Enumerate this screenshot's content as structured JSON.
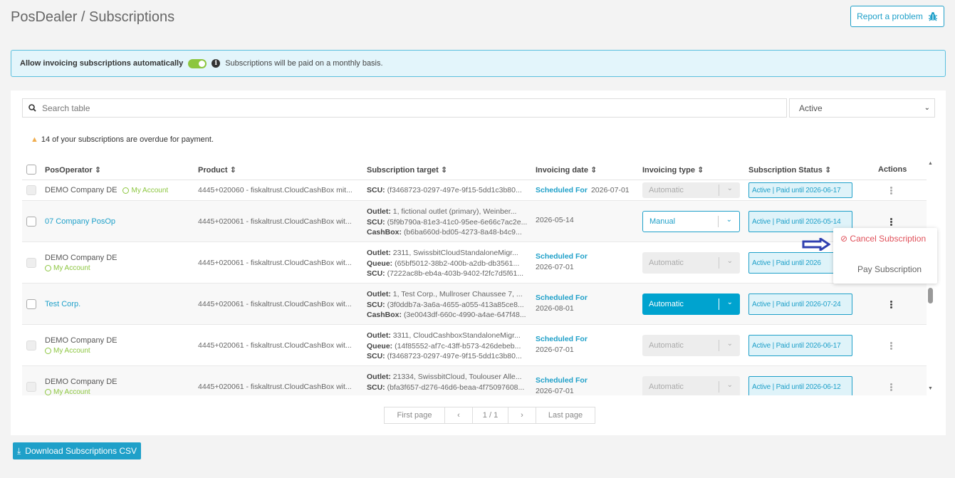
{
  "header": {
    "title": "PosDealer / Subscriptions",
    "report_label": "Report a problem",
    "report_icon": "bug-icon"
  },
  "banner": {
    "label": "Allow invoicing subscriptions automatically",
    "toggle_on": true,
    "info": "Subscriptions will be paid on a monthly basis."
  },
  "search": {
    "placeholder": "Search table"
  },
  "filter": {
    "selected": "Active"
  },
  "warning": "14 of your subscriptions are overdue for payment.",
  "columns": [
    "PosOperator",
    "Product",
    "Subscription target",
    "Invoicing date",
    "Invoicing type",
    "Subscription Status",
    "Actions"
  ],
  "rows": [
    {
      "operator": "DEMO Company DE",
      "account": "My Account",
      "product": "4445+020060 - fiskaltrust.CloudCashBox mit...",
      "target": [
        {
          "k": "",
          "v": ""
        },
        {
          "k": "",
          "v": ""
        },
        {
          "k": "SCU:",
          "v": "(f3468723-0297-497e-9f15-5dd1c3b80..."
        }
      ],
      "scheduled": "Scheduled For",
      "date": "2026-07-01",
      "type": "Automatic",
      "type_state": "disabled",
      "status": "Active | Paid until 2026-06-17"
    },
    {
      "operator": "07 Company PosOp",
      "account": "",
      "product": "4445+020061 - fiskaltrust.CloudCashBox wit...",
      "target": [
        {
          "k": "Outlet:",
          "v": "1, fictional outlet (primary), Weinber..."
        },
        {
          "k": "SCU:",
          "v": "(5f9b790a-81e3-41c0-95ee-6e66c7ac2e..."
        },
        {
          "k": "CashBox:",
          "v": "(b6ba660d-bd05-4273-8a48-b4c9..."
        }
      ],
      "scheduled": "",
      "date": "2026-05-14",
      "type": "Manual",
      "type_state": "manual",
      "status": "Active | Paid until 2026-05-14"
    },
    {
      "operator": "DEMO Company DE",
      "account": "My Account",
      "product": "4445+020061 - fiskaltrust.CloudCashBox wit...",
      "target": [
        {
          "k": "Outlet:",
          "v": "2311, SwissbitCloudStandaloneMigr..."
        },
        {
          "k": "Queue:",
          "v": "(65bf5012-38b2-400b-a2db-db3561..."
        },
        {
          "k": "SCU:",
          "v": "(7222ac8b-eb4a-403b-9402-f2fc7d5f61..."
        }
      ],
      "scheduled": "Scheduled For",
      "date": "2026-07-01",
      "type": "Automatic",
      "type_state": "disabled",
      "status": "Active | Paid until 2026"
    },
    {
      "operator": "Test Corp.",
      "account": "",
      "product": "4445+020061 - fiskaltrust.CloudCashBox wit...",
      "target": [
        {
          "k": "Outlet:",
          "v": "1, Test Corp., Mullroser Chaussee 7, ..."
        },
        {
          "k": "SCU:",
          "v": "(3f0ddb7a-3a6a-4655-a055-413a85ce8..."
        },
        {
          "k": "CashBox:",
          "v": "(3e0043df-660c-4990-a4ae-647f48..."
        }
      ],
      "scheduled": "Scheduled For",
      "date": "2026-08-01",
      "type": "Automatic",
      "type_state": "auto",
      "status": "Active | Paid until 2026-07-24"
    },
    {
      "operator": "DEMO Company DE",
      "account": "My Account",
      "product": "4445+020061 - fiskaltrust.CloudCashBox wit...",
      "target": [
        {
          "k": "Outlet:",
          "v": "3311, CloudCashboxStandaloneMigr..."
        },
        {
          "k": "Queue:",
          "v": "(14f85552-af7c-43ff-b573-426debeb..."
        },
        {
          "k": "SCU:",
          "v": "(f3468723-0297-497e-9f15-5dd1c3b80..."
        }
      ],
      "scheduled": "Scheduled For",
      "date": "2026-07-01",
      "type": "Automatic",
      "type_state": "disabled",
      "status": "Active | Paid until 2026-06-17"
    },
    {
      "operator": "DEMO Company DE",
      "account": "My Account",
      "product": "4445+020061 - fiskaltrust.CloudCashBox wit...",
      "target": [
        {
          "k": "Outlet:",
          "v": "21334, SwissbitCloud, Toulouser Alle..."
        },
        {
          "k": "SCU:",
          "v": "(bfa3f657-d276-46d6-beaa-4f75097608..."
        },
        {
          "k": "",
          "v": ""
        }
      ],
      "scheduled": "Scheduled For",
      "date": "2026-07-01",
      "type": "Automatic",
      "type_state": "disabled",
      "status": "Active | Paid until 2026-06-12"
    }
  ],
  "menu": {
    "cancel": "Cancel Subscription",
    "pay": "Pay Subscription"
  },
  "pagination": {
    "first": "First page",
    "prev": "‹",
    "page": "1 / 1",
    "next": "›",
    "last": "Last page"
  },
  "download_label": "Download Subscriptions CSV",
  "colors": {
    "accent": "#1fa0c9",
    "toggle": "#8cc63f",
    "danger": "#e0505a",
    "arrow": "#3040b0"
  }
}
